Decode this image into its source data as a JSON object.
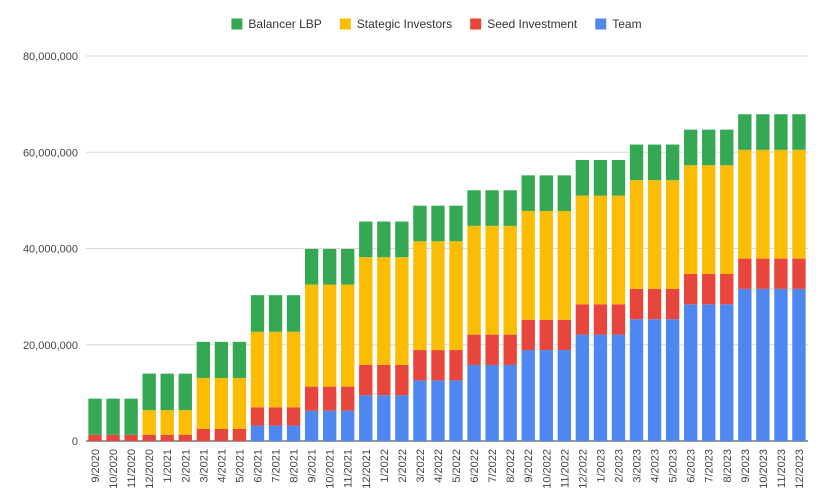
{
  "chart_data": {
    "type": "bar",
    "stacked": true,
    "legend_position": "top",
    "grid": true,
    "ylim": [
      0,
      80000000
    ],
    "yticks": [
      0,
      20000000,
      40000000,
      60000000,
      80000000
    ],
    "ytick_labels": [
      "0",
      "20,000,000",
      "40,000,000",
      "60,000,000",
      "80,000,000"
    ],
    "categories": [
      "9/2020",
      "10/2020",
      "11/2020",
      "12/2020",
      "1/2021",
      "2/2021",
      "3/2021",
      "4/2021",
      "5/2021",
      "6/2021",
      "7/2021",
      "8/2021",
      "9/2021",
      "10/2021",
      "11/2021",
      "12/2021",
      "1/2022",
      "2/2022",
      "3/2022",
      "4/2022",
      "5/2022",
      "6/2022",
      "7/2022",
      "8/2022",
      "9/2022",
      "10/2022",
      "11/2022",
      "12/2022",
      "1/2023",
      "2/2023",
      "3/2023",
      "4/2023",
      "5/2023",
      "6/2023",
      "7/2023",
      "8/2023",
      "9/2023",
      "10/2023",
      "11/2023",
      "12/2023"
    ],
    "series": [
      {
        "name": "Team",
        "color": "#4f87f1",
        "values": [
          0,
          0,
          0,
          0,
          0,
          0,
          0,
          0,
          0,
          3200000,
          3200000,
          3200000,
          6300000,
          6300000,
          6300000,
          9500000,
          9500000,
          9500000,
          12600000,
          12600000,
          12600000,
          15800000,
          15800000,
          15800000,
          18900000,
          18900000,
          18900000,
          22100000,
          22100000,
          22100000,
          25300000,
          25300000,
          25300000,
          28400000,
          28400000,
          28400000,
          31600000,
          31600000,
          31600000,
          31600000
        ]
      },
      {
        "name": "Seed Investment",
        "color": "#e8453c",
        "values": [
          1300000,
          1300000,
          1300000,
          1300000,
          1300000,
          1300000,
          2500000,
          2500000,
          2500000,
          3800000,
          3800000,
          3800000,
          5000000,
          5000000,
          5000000,
          6300000,
          6300000,
          6300000,
          6300000,
          6300000,
          6300000,
          6300000,
          6300000,
          6300000,
          6300000,
          6300000,
          6300000,
          6300000,
          6300000,
          6300000,
          6300000,
          6300000,
          6300000,
          6300000,
          6300000,
          6300000,
          6300000,
          6300000,
          6300000,
          6300000
        ]
      },
      {
        "name": "Stategic Investors",
        "color": "#fbbc04",
        "values": [
          0,
          0,
          0,
          5100000,
          5100000,
          5100000,
          10600000,
          10600000,
          10600000,
          15700000,
          15700000,
          15700000,
          21200000,
          21200000,
          21200000,
          22400000,
          22400000,
          22400000,
          22600000,
          22600000,
          22600000,
          22600000,
          22600000,
          22600000,
          22600000,
          22600000,
          22600000,
          22600000,
          22600000,
          22600000,
          22600000,
          22600000,
          22600000,
          22600000,
          22600000,
          22600000,
          22600000,
          22600000,
          22600000,
          22600000
        ]
      },
      {
        "name": "Balancer LBP",
        "color": "#34a853",
        "values": [
          7500000,
          7500000,
          7500000,
          7600000,
          7600000,
          7600000,
          7500000,
          7500000,
          7500000,
          7600000,
          7600000,
          7600000,
          7400000,
          7400000,
          7400000,
          7400000,
          7400000,
          7400000,
          7400000,
          7400000,
          7400000,
          7400000,
          7400000,
          7400000,
          7400000,
          7400000,
          7400000,
          7400000,
          7400000,
          7400000,
          7400000,
          7400000,
          7400000,
          7400000,
          7400000,
          7400000,
          7400000,
          7400000,
          7400000,
          7400000
        ]
      }
    ],
    "legend_order": [
      "Balancer LBP",
      "Stategic Investors",
      "Seed Investment",
      "Team"
    ]
  }
}
